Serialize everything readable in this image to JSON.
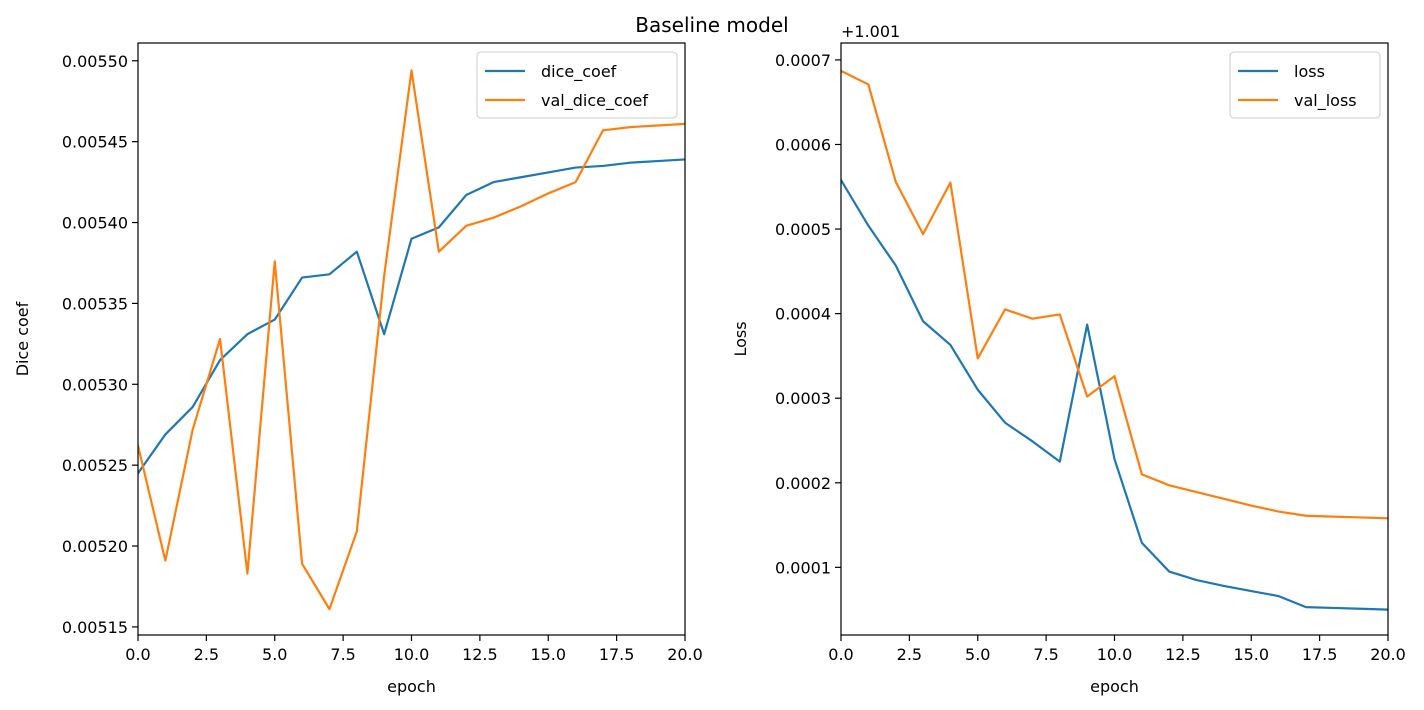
{
  "figure": {
    "suptitle": "Baseline model"
  },
  "chart_data": [
    {
      "type": "line",
      "title": "",
      "xlabel": "epoch",
      "ylabel": "Dice coef",
      "xlim": [
        0,
        20
      ],
      "ylim": [
        0.005145,
        0.005511
      ],
      "xticks": [
        0,
        2.5,
        5,
        7.5,
        10,
        12.5,
        15,
        17.5,
        20
      ],
      "xtick_labels": [
        "0.0",
        "2.5",
        "5.0",
        "7.5",
        "10.0",
        "12.5",
        "15.0",
        "17.5",
        "20.0"
      ],
      "yticks": [
        0.00515,
        0.0052,
        0.00525,
        0.0053,
        0.00535,
        0.0054,
        0.00545,
        0.0055
      ],
      "ytick_labels": [
        "0.00515",
        "0.00520",
        "0.00525",
        "0.00530",
        "0.00535",
        "0.00540",
        "0.00545",
        "0.00550"
      ],
      "y_offset_text": "",
      "grid": false,
      "legend_position": "upper right",
      "x": [
        0,
        1,
        2,
        3,
        4,
        5,
        6,
        7,
        8,
        9,
        10,
        11,
        12,
        13,
        14,
        15,
        16,
        17,
        18,
        19,
        20
      ],
      "series": [
        {
          "name": "dice_coef",
          "color": "#1f77b4",
          "values": [
            0.005245,
            0.005269,
            0.005286,
            0.005315,
            0.005331,
            0.00534,
            0.005366,
            0.005368,
            0.005382,
            0.005331,
            0.00539,
            0.005397,
            0.005417,
            0.005425,
            0.005428,
            0.005431,
            0.005434,
            0.005435,
            0.005437,
            0.005438,
            0.005439
          ]
        },
        {
          "name": "val_dice_coef",
          "color": "#ff7f0e",
          "values": [
            0.005262,
            0.005191,
            0.005272,
            0.005328,
            0.005183,
            0.005376,
            0.005189,
            0.005161,
            0.005209,
            0.005367,
            0.005494,
            0.005382,
            0.005398,
            0.005403,
            0.00541,
            0.005418,
            0.005425,
            0.005457,
            0.005459,
            0.00546,
            0.005461
          ]
        }
      ]
    },
    {
      "type": "line",
      "title": "",
      "xlabel": "epoch",
      "ylabel": "Loss",
      "xlim": [
        0,
        20
      ],
      "ylim": [
        2e-05,
        0.00072
      ],
      "xticks": [
        0,
        2.5,
        5,
        7.5,
        10,
        12.5,
        15,
        17.5,
        20
      ],
      "xtick_labels": [
        "0.0",
        "2.5",
        "5.0",
        "7.5",
        "10.0",
        "12.5",
        "15.0",
        "17.5",
        "20.0"
      ],
      "yticks": [
        0.0001,
        0.0002,
        0.0003,
        0.0004,
        0.0005,
        0.0006,
        0.0007
      ],
      "ytick_labels": [
        "0.0001",
        "0.0002",
        "0.0003",
        "0.0004",
        "0.0005",
        "0.0006",
        "0.0007"
      ],
      "y_offset_text": "+1.001",
      "grid": false,
      "legend_position": "upper right",
      "x": [
        0,
        1,
        2,
        3,
        4,
        5,
        6,
        7,
        8,
        9,
        10,
        11,
        12,
        13,
        14,
        15,
        16,
        17,
        18,
        19,
        20
      ],
      "series": [
        {
          "name": "loss",
          "color": "#1f77b4",
          "values": [
            0.000558,
            0.000504,
            0.000457,
            0.000391,
            0.000363,
            0.00031,
            0.000271,
            0.000249,
            0.000225,
            0.000387,
            0.000228,
            0.000129,
            9.5e-05,
            8.5e-05,
            7.8e-05,
            7.2e-05,
            6.6e-05,
            5.3e-05,
            5.2e-05,
            5.1e-05,
            5e-05
          ]
        },
        {
          "name": "val_loss",
          "color": "#ff7f0e",
          "values": [
            0.000687,
            0.000671,
            0.000556,
            0.000494,
            0.000555,
            0.000347,
            0.000405,
            0.000394,
            0.000399,
            0.000302,
            0.000326,
            0.00021,
            0.000197,
            0.000189,
            0.000181,
            0.000173,
            0.000166,
            0.000161,
            0.00016,
            0.000159,
            0.000158
          ]
        }
      ]
    }
  ]
}
